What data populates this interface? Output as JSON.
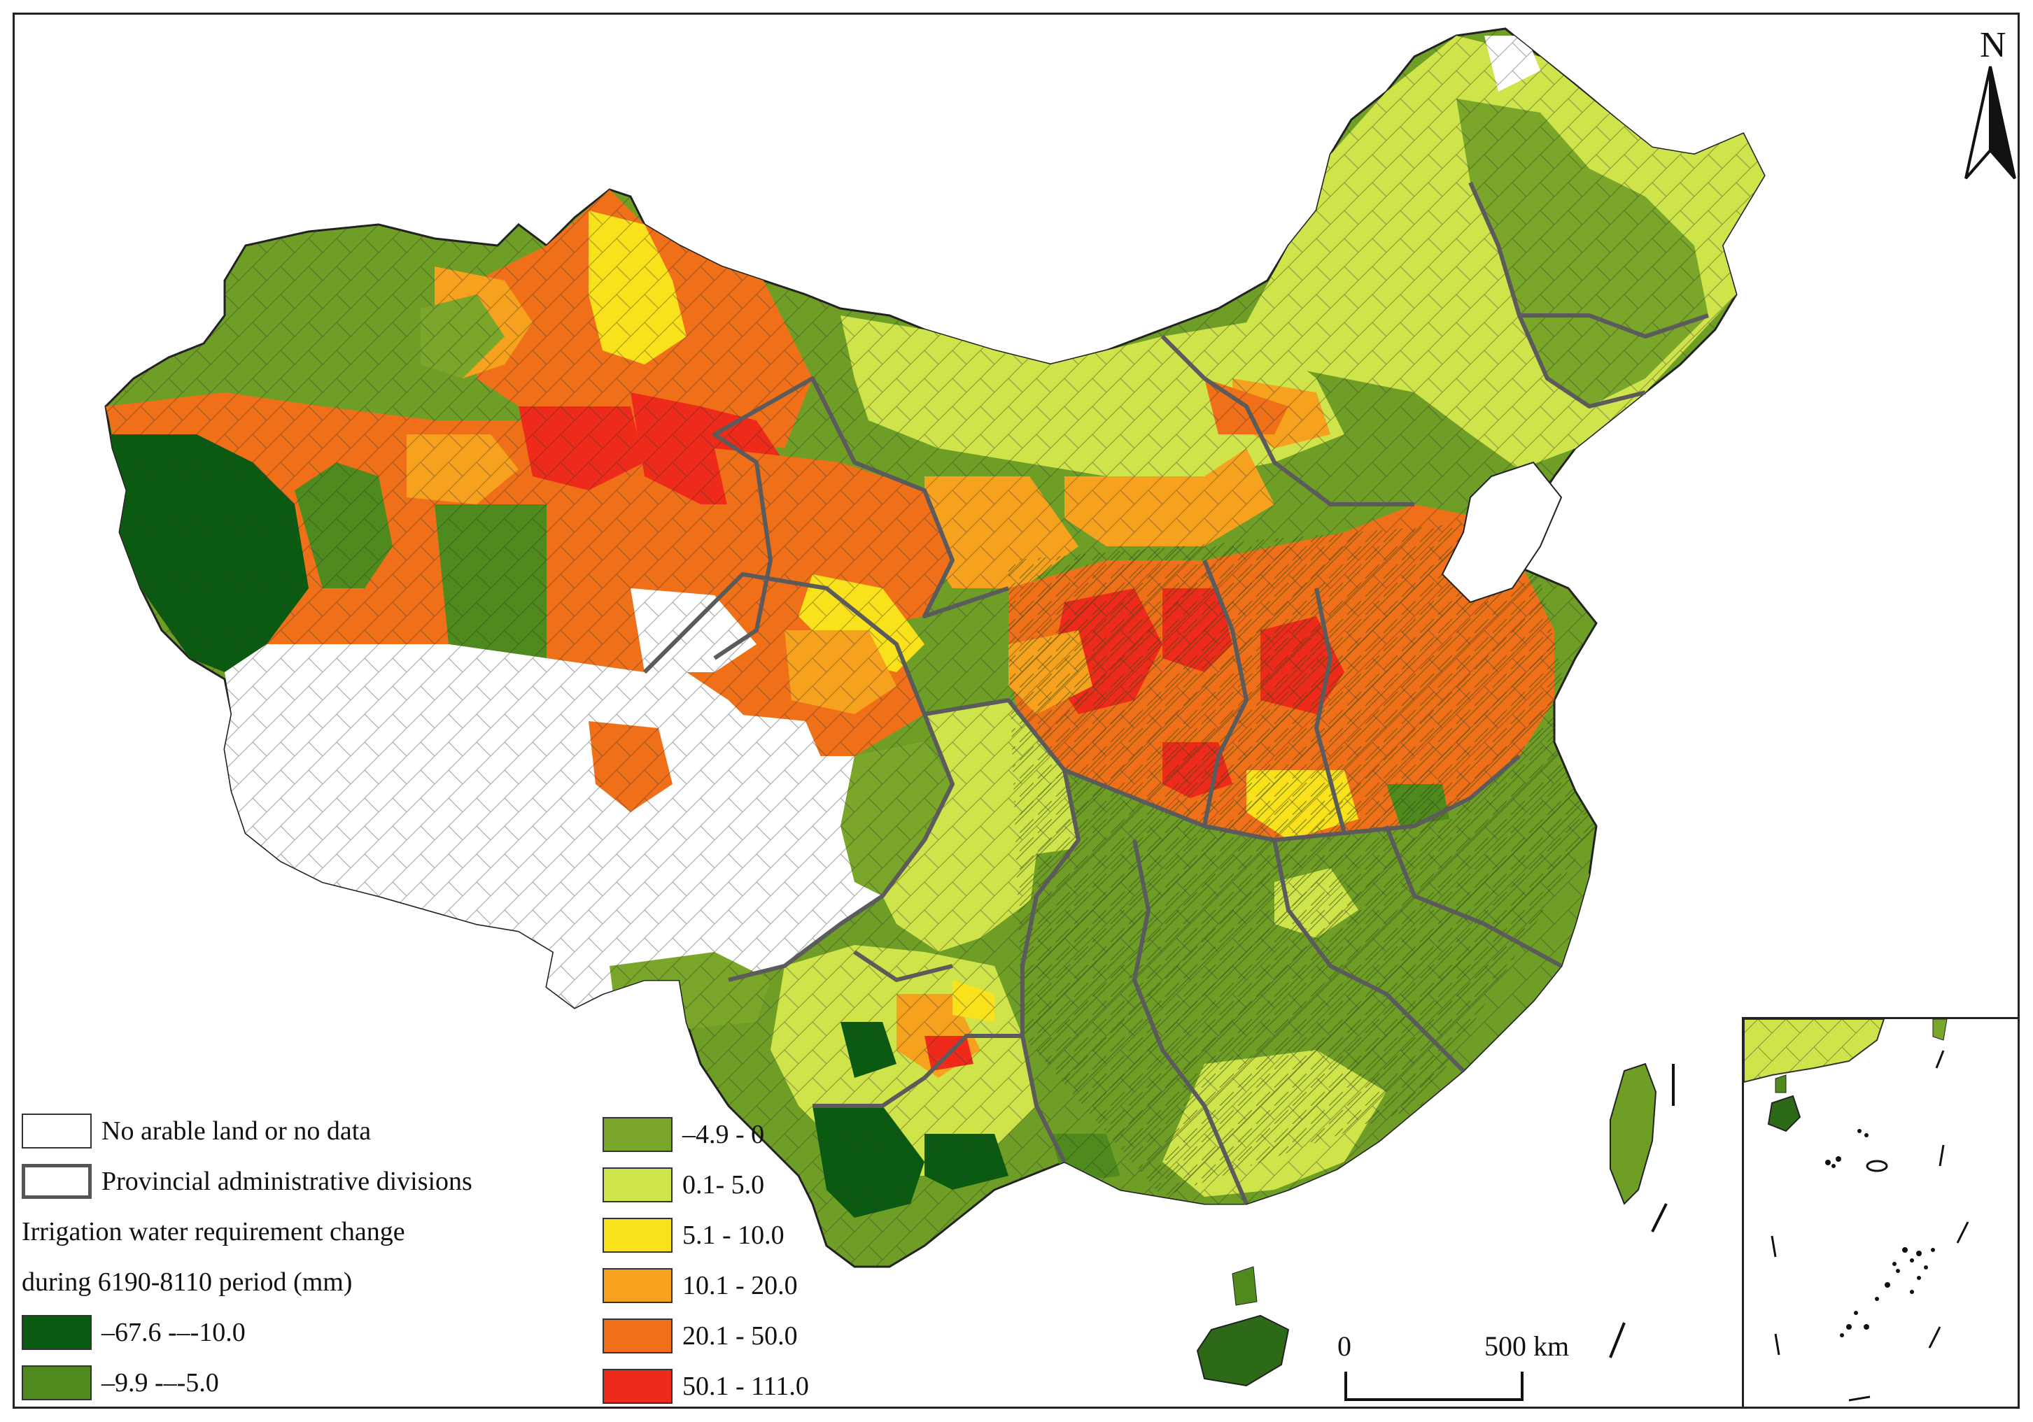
{
  "legend": {
    "no_data_label": "No arable land or no data",
    "provincial_label": "Provincial administrative divisions",
    "heading_line1": "Irrigation water requirement change",
    "heading_line2": "during 6190-8110 period (mm)",
    "classes": [
      {
        "label": "–67.6 -–-10.0",
        "color": "#0b5a12"
      },
      {
        "label": "–9.9 -–-5.0",
        "color": "#4f8a1e"
      },
      {
        "label": "–4.9 - 0",
        "color": "#7aa62a"
      },
      {
        "label": "0.1- 5.0",
        "color": "#cfe34a"
      },
      {
        "label": "5.1 - 10.0",
        "color": "#f9e21c"
      },
      {
        "label": "10.1 - 20.0",
        "color": "#f6a21e"
      },
      {
        "label": "20.1 - 50.0",
        "color": "#f0701a"
      },
      {
        "label": "50.1 - 111.0",
        "color": "#ee2b1a"
      }
    ],
    "no_data_color": "#ffffff"
  },
  "north_arrow": {
    "label": "N"
  },
  "scale_bar": {
    "start_label": "0",
    "end_label": "500 km"
  }
}
